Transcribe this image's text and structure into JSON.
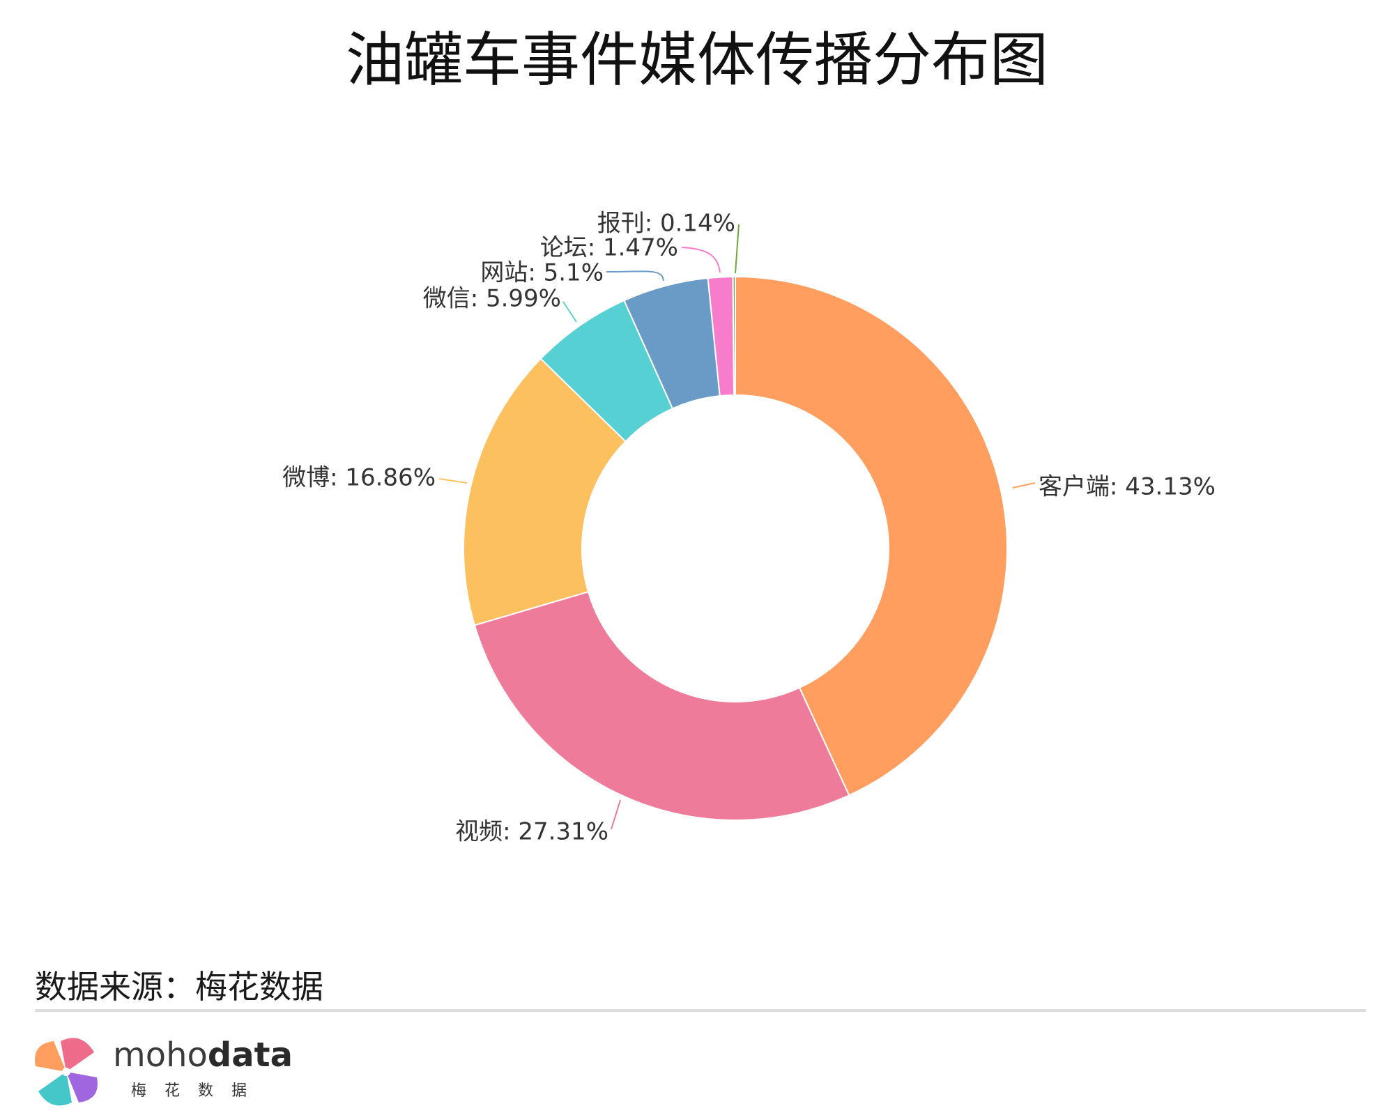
{
  "chart_data": {
    "type": "pie",
    "donut": true,
    "title": "油罐车事件媒体传播分布图",
    "slices": [
      {
        "label": "客户端",
        "value": 43.13,
        "display": "客户端: 43.13%",
        "color": "#FF9E5E"
      },
      {
        "label": "视频",
        "value": 27.31,
        "display": "视频: 27.31%",
        "color": "#EE7B9A"
      },
      {
        "label": "微博",
        "value": 16.86,
        "display": "微博: 16.86%",
        "color": "#FDC05F"
      },
      {
        "label": "微信",
        "value": 5.99,
        "display": "微信: 5.99%",
        "color": "#57D0D3"
      },
      {
        "label": "网站",
        "value": 5.1,
        "display": "网站: 5.1%",
        "color": "#6A9BC6"
      },
      {
        "label": "论坛",
        "value": 1.47,
        "display": "论坛: 1.47%",
        "color": "#F77CCB"
      },
      {
        "label": "报刊",
        "value": 0.14,
        "display": "报刊: 0.14%",
        "color": "#6FA83A"
      }
    ]
  },
  "footer": {
    "source": "数据来源：梅花数据",
    "brand_en_light": "moho",
    "brand_en_bold": "data",
    "brand_cn": "梅花数据"
  },
  "colors": {
    "divider": "#DDDDDD",
    "slice_border": "#FFFFFF"
  }
}
